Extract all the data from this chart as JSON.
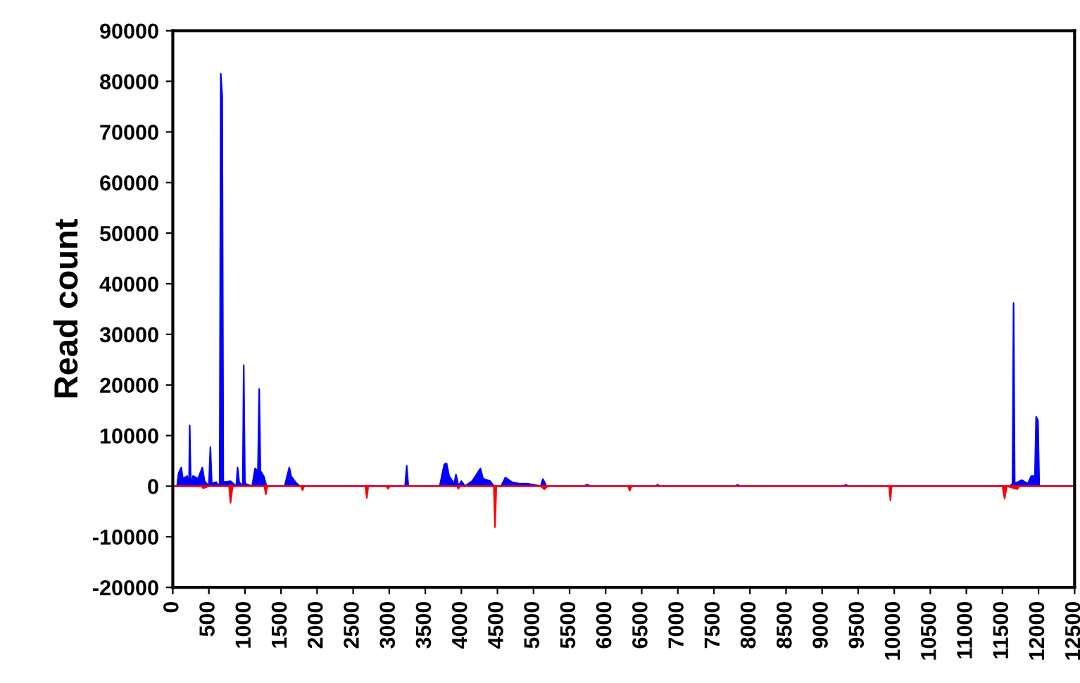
{
  "chart_data": {
    "type": "area",
    "ylabel": "Read count",
    "series": [
      {
        "color": "#0000ff",
        "x": [
          0,
          60,
          80,
          117,
          140,
          200,
          225,
          234,
          250,
          280,
          350,
          410,
          440,
          500,
          521,
          540,
          600,
          650,
          665,
          685,
          700,
          800,
          880,
          898,
          920,
          970,
          983,
          1000,
          1100,
          1140,
          1180,
          1198,
          1215,
          1260,
          1300,
          1550,
          1615,
          1640,
          1700,
          1760,
          3220,
          3242,
          3265,
          3700,
          3763,
          3795,
          3830,
          3900,
          3925,
          3960,
          4000,
          4050,
          4150,
          4264,
          4300,
          4400,
          4450,
          4550,
          4610,
          4700,
          4800,
          4900,
          5000,
          5100,
          5130,
          5180,
          5700,
          5740,
          5800,
          6700,
          6720,
          6750,
          7800,
          7830,
          7860,
          9300,
          9330,
          9360,
          11600,
          11640,
          11654,
          11670,
          11771,
          11850,
          11900,
          11950,
          11967,
          11992,
          12010,
          12500
        ],
        "values": [
          0,
          0,
          2500,
          3700,
          1500,
          2000,
          0,
          12000,
          0,
          2000,
          1500,
          3700,
          1000,
          0,
          7700,
          500,
          800,
          0,
          81500,
          77000,
          800,
          1000,
          0,
          3700,
          800,
          0,
          23900,
          500,
          0,
          3500,
          3000,
          19200,
          3000,
          2000,
          0,
          0,
          3700,
          2000,
          800,
          0,
          0,
          4000,
          0,
          0,
          4300,
          4500,
          2000,
          500,
          2300,
          0,
          1000,
          0,
          1000,
          3500,
          1500,
          1000,
          0,
          0,
          1700,
          800,
          500,
          500,
          300,
          0,
          1400,
          0,
          0,
          300,
          0,
          0,
          300,
          0,
          0,
          300,
          0,
          0,
          300,
          0,
          0,
          500,
          36200,
          500,
          1200,
          500,
          2000,
          2000,
          13700,
          13000,
          0,
          0
        ]
      },
      {
        "color": "#ff0000",
        "x": [
          0,
          400,
          420,
          500,
          780,
          800,
          830,
          1270,
          1289,
          1310,
          1780,
          1797,
          1820,
          2670,
          2689,
          2710,
          2960,
          2982,
          3010,
          3940,
          3958,
          3980,
          4450,
          4466,
          4485,
          5100,
          5150,
          5200,
          6310,
          6334,
          6360,
          9930,
          9947,
          9965,
          11500,
          11530,
          11560,
          11705,
          11730,
          12500
        ],
        "values": [
          0,
          0,
          -400,
          0,
          0,
          -3300,
          0,
          0,
          -1600,
          0,
          0,
          -800,
          0,
          0,
          -2300,
          0,
          0,
          -500,
          0,
          0,
          -500,
          0,
          0,
          -8100,
          0,
          0,
          -600,
          0,
          0,
          -900,
          0,
          0,
          -2800,
          0,
          0,
          -2500,
          0,
          -600,
          0,
          0
        ]
      }
    ],
    "xlim": [
      0,
      12500
    ],
    "xticks": [
      0,
      500,
      1000,
      1500,
      2000,
      2500,
      3000,
      3500,
      4000,
      4500,
      5000,
      5500,
      6000,
      6500,
      7000,
      7500,
      8000,
      8500,
      9000,
      9500,
      10000,
      10500,
      11000,
      11500,
      12000,
      12500
    ],
    "ylim": [
      -20000,
      90000
    ],
    "yticks": [
      -20000,
      -10000,
      0,
      10000,
      20000,
      30000,
      40000,
      50000,
      60000,
      70000,
      80000,
      90000
    ],
    "grid": false,
    "legend": false
  }
}
